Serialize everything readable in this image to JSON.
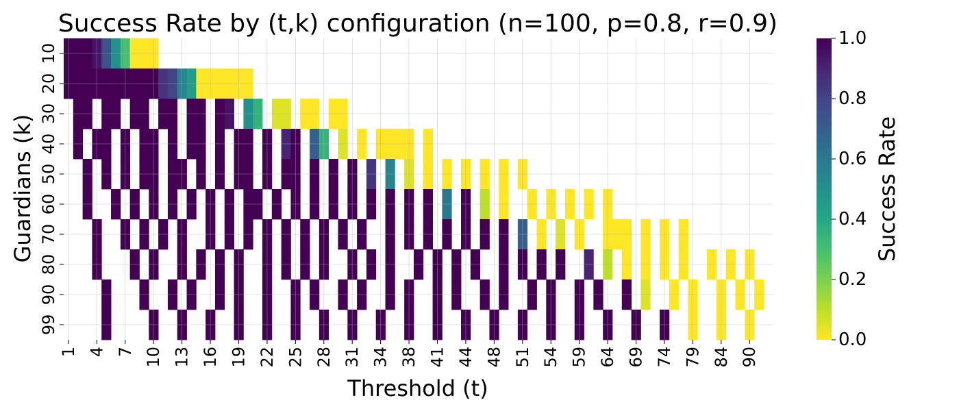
{
  "chart_data": {
    "type": "heatmap",
    "title": "Success Rate by (t,k) configuration (n=100, p=0.8, r=0.9)",
    "xlabel": "Threshold (t)",
    "ylabel": "Guardians (k)",
    "colorbar_label": "Success Rate",
    "colormap": "viridis",
    "value_range": [
      0.0,
      1.0
    ],
    "colorbar_ticks": [
      "0.0",
      "0.2",
      "0.4",
      "0.6",
      "0.8",
      "1.0"
    ],
    "x_tick_labels": [
      "1",
      "4",
      "7",
      "10",
      "13",
      "16",
      "19",
      "22",
      "25",
      "28",
      "31",
      "34",
      "38",
      "41",
      "44",
      "48",
      "51",
      "54",
      "59",
      "64",
      "69",
      "74",
      "79",
      "84",
      "90"
    ],
    "y_tick_labels": [
      "10",
      "20",
      "30",
      "40",
      "50",
      "60",
      "70",
      "80",
      "90",
      "99"
    ],
    "grid": true,
    "thresholds": [
      1,
      2,
      3,
      4,
      5,
      6,
      7,
      8,
      9,
      10,
      11,
      12,
      13,
      14,
      15,
      16,
      17,
      18,
      19,
      20,
      21,
      22,
      23,
      24,
      25,
      26,
      27,
      28,
      29,
      30,
      31,
      32,
      33,
      34,
      35,
      36,
      37,
      38,
      39,
      40,
      41,
      42,
      43,
      44,
      45,
      46,
      47,
      48,
      49,
      50,
      51,
      52,
      53,
      54,
      55,
      56,
      57,
      58,
      59,
      60,
      61,
      62,
      63,
      64,
      65,
      66,
      67,
      68,
      69,
      70,
      71,
      72,
      73,
      74,
      75,
      76,
      77,
      78,
      79,
      80,
      81,
      82,
      83,
      84,
      85,
      86,
      87,
      88,
      89,
      90,
      91,
      92,
      93,
      94,
      95,
      96,
      97,
      98,
      99,
      100
    ],
    "guardians": [
      10,
      20,
      30,
      40,
      50,
      60,
      70,
      80,
      90,
      99
    ],
    "rows": [
      {
        "k": 10,
        "cells": [
          [
            1,
            1.0
          ],
          [
            2,
            1.0
          ],
          [
            3,
            1.0
          ],
          [
            4,
            0.95
          ],
          [
            5,
            0.75
          ],
          [
            6,
            0.5
          ],
          [
            7,
            0.3
          ],
          [
            8,
            0.0
          ],
          [
            9,
            0.0
          ],
          [
            10,
            0.0
          ]
        ]
      },
      {
        "k": 20,
        "cells": [
          [
            1,
            1.0
          ],
          [
            2,
            1.0
          ],
          [
            3,
            1.0
          ],
          [
            4,
            1.0
          ],
          [
            5,
            1.0
          ],
          [
            6,
            1.0
          ],
          [
            7,
            1.0
          ],
          [
            8,
            1.0
          ],
          [
            9,
            1.0
          ],
          [
            10,
            1.0
          ],
          [
            11,
            0.85
          ],
          [
            12,
            0.8
          ],
          [
            13,
            0.55
          ],
          [
            14,
            0.45
          ],
          [
            15,
            0.0
          ],
          [
            16,
            0.0
          ],
          [
            17,
            0.0
          ],
          [
            18,
            0.0
          ],
          [
            19,
            0.0
          ],
          [
            20,
            0.0
          ]
        ]
      },
      {
        "k": 30,
        "cells": [
          [
            2,
            1.0
          ],
          [
            3,
            1.0
          ],
          [
            5,
            1.0
          ],
          [
            6,
            1.0
          ],
          [
            8,
            1.0
          ],
          [
            9,
            1.0
          ],
          [
            11,
            1.0
          ],
          [
            12,
            1.0
          ],
          [
            14,
            1.0
          ],
          [
            15,
            1.0
          ],
          [
            17,
            1.0
          ],
          [
            18,
            0.95
          ],
          [
            20,
            0.5
          ],
          [
            21,
            0.35
          ],
          [
            23,
            0.05
          ],
          [
            24,
            0.05
          ],
          [
            26,
            0.0
          ],
          [
            27,
            0.0
          ],
          [
            29,
            0.0
          ],
          [
            30,
            0.0
          ]
        ]
      },
      {
        "k": 40,
        "cells": [
          [
            2,
            1.0
          ],
          [
            4,
            1.0
          ],
          [
            5,
            1.0
          ],
          [
            7,
            1.0
          ],
          [
            9,
            1.0
          ],
          [
            10,
            1.0
          ],
          [
            12,
            1.0
          ],
          [
            14,
            1.0
          ],
          [
            15,
            1.0
          ],
          [
            17,
            1.0
          ],
          [
            19,
            1.0
          ],
          [
            20,
            1.0
          ],
          [
            22,
            1.0
          ],
          [
            24,
            0.9
          ],
          [
            25,
            1.0
          ],
          [
            27,
            0.7
          ],
          [
            28,
            0.35
          ],
          [
            30,
            0.05
          ],
          [
            32,
            0.0
          ],
          [
            34,
            0.0
          ],
          [
            35,
            0.0
          ],
          [
            36,
            0.0
          ],
          [
            37,
            0.0
          ],
          [
            39,
            0.0
          ]
        ]
      },
      {
        "k": 50,
        "cells": [
          [
            3,
            1.0
          ],
          [
            5,
            1.0
          ],
          [
            7,
            1.0
          ],
          [
            9,
            1.0
          ],
          [
            10,
            1.0
          ],
          [
            12,
            1.0
          ],
          [
            13,
            1.0
          ],
          [
            15,
            1.0
          ],
          [
            17,
            1.0
          ],
          [
            19,
            1.0
          ],
          [
            20,
            1.0
          ],
          [
            22,
            1.0
          ],
          [
            24,
            1.0
          ],
          [
            25,
            1.0
          ],
          [
            27,
            1.0
          ],
          [
            29,
            1.0
          ],
          [
            31,
            1.0
          ],
          [
            33,
            0.85
          ],
          [
            35,
            0.55
          ],
          [
            37,
            0.05
          ],
          [
            39,
            0.0
          ],
          [
            41,
            0.0
          ],
          [
            43,
            0.0
          ],
          [
            45,
            0.0
          ],
          [
            47,
            0.0
          ],
          [
            49,
            0.0
          ]
        ]
      },
      {
        "k": 60,
        "cells": [
          [
            3,
            1.0
          ],
          [
            6,
            1.0
          ],
          [
            8,
            1.0
          ],
          [
            10,
            1.0
          ],
          [
            12,
            1.0
          ],
          [
            14,
            1.0
          ],
          [
            16,
            1.0
          ],
          [
            18,
            1.0
          ],
          [
            20,
            1.0
          ],
          [
            21,
            1.0
          ],
          [
            23,
            1.0
          ],
          [
            25,
            1.0
          ],
          [
            27,
            1.0
          ],
          [
            29,
            1.0
          ],
          [
            31,
            1.0
          ],
          [
            33,
            1.0
          ],
          [
            35,
            1.0
          ],
          [
            37,
            1.0
          ],
          [
            39,
            1.0
          ],
          [
            41,
            0.6
          ],
          [
            43,
            1.0
          ],
          [
            45,
            0.1
          ],
          [
            47,
            0.0
          ],
          [
            50,
            0.0
          ],
          [
            52,
            0.0
          ],
          [
            54,
            0.0
          ],
          [
            56,
            0.0
          ],
          [
            58,
            0.0
          ]
        ]
      },
      {
        "k": 70,
        "cells": [
          [
            4,
            1.0
          ],
          [
            7,
            1.0
          ],
          [
            9,
            1.0
          ],
          [
            11,
            1.0
          ],
          [
            13,
            1.0
          ],
          [
            16,
            1.0
          ],
          [
            18,
            1.0
          ],
          [
            20,
            1.0
          ],
          [
            22,
            1.0
          ],
          [
            24,
            1.0
          ],
          [
            26,
            1.0
          ],
          [
            28,
            1.0
          ],
          [
            30,
            1.0
          ],
          [
            32,
            1.0
          ],
          [
            35,
            1.0
          ],
          [
            37,
            1.0
          ],
          [
            39,
            1.0
          ],
          [
            41,
            1.0
          ],
          [
            43,
            1.0
          ],
          [
            45,
            1.0
          ],
          [
            47,
            1.0
          ],
          [
            49,
            0.7
          ],
          [
            51,
            0.0
          ],
          [
            53,
            0.05
          ],
          [
            55,
            0.0
          ],
          [
            58,
            0.0
          ],
          [
            59,
            0.0
          ],
          [
            60,
            0.0
          ],
          [
            62,
            0.0
          ],
          [
            64,
            0.0
          ],
          [
            66,
            0.0
          ]
        ]
      },
      {
        "k": 80,
        "cells": [
          [
            4,
            1.0
          ],
          [
            8,
            1.0
          ],
          [
            10,
            1.0
          ],
          [
            13,
            1.0
          ],
          [
            15,
            1.0
          ],
          [
            17,
            1.0
          ],
          [
            19,
            1.0
          ],
          [
            22,
            1.0
          ],
          [
            24,
            1.0
          ],
          [
            26,
            1.0
          ],
          [
            28,
            1.0
          ],
          [
            31,
            1.0
          ],
          [
            33,
            1.0
          ],
          [
            35,
            1.0
          ],
          [
            38,
            1.0
          ],
          [
            40,
            1.0
          ],
          [
            42,
            1.0
          ],
          [
            44,
            1.0
          ],
          [
            47,
            1.0
          ],
          [
            49,
            1.0
          ],
          [
            51,
            1.0
          ],
          [
            53,
            1.0
          ],
          [
            56,
            0.9
          ],
          [
            58,
            0.1
          ],
          [
            60,
            0.0
          ],
          [
            62,
            0.0
          ],
          [
            64,
            0.0
          ],
          [
            66,
            0.0
          ],
          [
            69,
            0.0
          ],
          [
            71,
            0.0
          ],
          [
            73,
            0.0
          ]
        ]
      },
      {
        "k": 90,
        "cells": [
          [
            5,
            1.0
          ],
          [
            9,
            1.0
          ],
          [
            12,
            1.0
          ],
          [
            14,
            1.0
          ],
          [
            17,
            1.0
          ],
          [
            19,
            1.0
          ],
          [
            22,
            1.0
          ],
          [
            25,
            1.0
          ],
          [
            27,
            1.0
          ],
          [
            30,
            1.0
          ],
          [
            32,
            1.0
          ],
          [
            35,
            1.0
          ],
          [
            37,
            1.0
          ],
          [
            40,
            1.0
          ],
          [
            42,
            1.0
          ],
          [
            45,
            1.0
          ],
          [
            47,
            1.0
          ],
          [
            50,
            1.0
          ],
          [
            52,
            1.0
          ],
          [
            55,
            1.0
          ],
          [
            57,
            1.0
          ],
          [
            60,
            1.0
          ],
          [
            62,
            0.05
          ],
          [
            65,
            0.0
          ],
          [
            67,
            0.0
          ],
          [
            70,
            0.0
          ],
          [
            72,
            0.0
          ],
          [
            74,
            0.0
          ],
          [
            77,
            0.0
          ],
          [
            79,
            0.0
          ],
          [
            81,
            0.0
          ],
          [
            84,
            0.0
          ]
        ]
      },
      {
        "k": 99,
        "cells": [
          [
            5,
            1.0
          ],
          [
            10,
            1.0
          ],
          [
            13,
            1.0
          ],
          [
            16,
            1.0
          ],
          [
            19,
            1.0
          ],
          [
            22,
            1.0
          ],
          [
            25,
            1.0
          ],
          [
            28,
            1.0
          ],
          [
            31,
            1.0
          ],
          [
            34,
            1.0
          ],
          [
            37,
            1.0
          ],
          [
            40,
            1.0
          ],
          [
            43,
            1.0
          ],
          [
            46,
            1.0
          ],
          [
            49,
            1.0
          ],
          [
            52,
            1.0
          ],
          [
            55,
            1.0
          ],
          [
            58,
            1.0
          ],
          [
            61,
            1.0
          ],
          [
            64,
            1.0
          ],
          [
            67,
            0.0
          ],
          [
            70,
            0.0
          ],
          [
            73,
            0.0
          ],
          [
            76,
            0.0
          ],
          [
            79,
            0.0
          ],
          [
            82,
            0.0
          ],
          [
            85,
            0.0
          ],
          [
            88,
            0.0
          ],
          [
            91,
            0.0
          ],
          [
            92,
            0.0
          ],
          [
            93,
            0.0
          ],
          [
            94,
            0.0
          ]
        ]
      }
    ]
  }
}
